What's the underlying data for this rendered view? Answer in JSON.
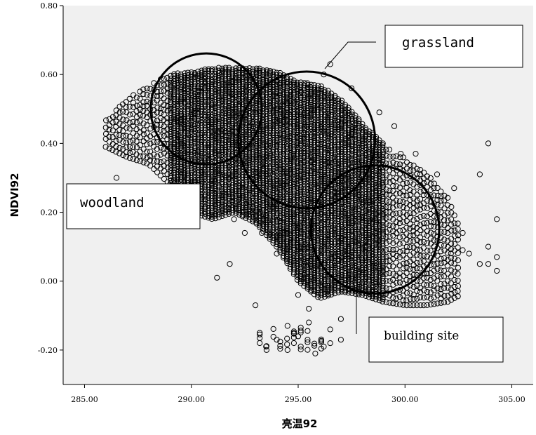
{
  "chart_data": {
    "type": "scatter",
    "xlabel": "亮温92",
    "ylabel": "NDVI92",
    "xlim": [
      284,
      306
    ],
    "ylim": [
      -0.3,
      0.8
    ],
    "xticks": [
      "285.00",
      "290.00",
      "295.00",
      "300.00",
      "305.00"
    ],
    "yticks": [
      "-0.20",
      "0.00",
      "0.20",
      "0.40",
      "0.60",
      "0.80"
    ],
    "xtick_values": [
      285,
      290,
      295,
      300,
      305
    ],
    "ytick_values": [
      -0.2,
      0.0,
      0.2,
      0.4,
      0.6,
      0.8
    ],
    "grid": false,
    "marker": "open-circle",
    "colors": {
      "plot_background": "#f0f0f0",
      "marker": "#000000"
    },
    "band_envelope": [
      {
        "x": 286.0,
        "ymin": 0.39,
        "ymax": 0.47
      },
      {
        "x": 287.0,
        "ymin": 0.36,
        "ymax": 0.53
      },
      {
        "x": 288.0,
        "ymin": 0.34,
        "ymax": 0.57
      },
      {
        "x": 289.0,
        "ymin": 0.28,
        "ymax": 0.6
      },
      {
        "x": 290.0,
        "ymin": 0.2,
        "ymax": 0.61
      },
      {
        "x": 291.0,
        "ymin": 0.18,
        "ymax": 0.62
      },
      {
        "x": 292.0,
        "ymin": 0.2,
        "ymax": 0.62
      },
      {
        "x": 293.0,
        "ymin": 0.17,
        "ymax": 0.62
      },
      {
        "x": 294.0,
        "ymin": 0.1,
        "ymax": 0.61
      },
      {
        "x": 295.0,
        "ymin": 0.0,
        "ymax": 0.58
      },
      {
        "x": 296.0,
        "ymin": -0.05,
        "ymax": 0.57
      },
      {
        "x": 297.0,
        "ymin": -0.03,
        "ymax": 0.53
      },
      {
        "x": 298.0,
        "ymin": -0.04,
        "ymax": 0.46
      },
      {
        "x": 299.0,
        "ymin": -0.06,
        "ymax": 0.4
      },
      {
        "x": 300.0,
        "ymin": -0.07,
        "ymax": 0.36
      },
      {
        "x": 301.0,
        "ymin": -0.07,
        "ymax": 0.32
      },
      {
        "x": 302.0,
        "ymin": -0.06,
        "ymax": 0.25
      },
      {
        "x": 302.6,
        "ymin": -0.04,
        "ymax": 0.15
      }
    ],
    "scattered_points": [
      [
        286.5,
        0.3
      ],
      [
        289.0,
        0.28
      ],
      [
        290.2,
        0.23
      ],
      [
        291.2,
        0.01
      ],
      [
        291.8,
        0.05
      ],
      [
        292.0,
        0.18
      ],
      [
        292.5,
        0.14
      ],
      [
        293.0,
        -0.07
      ],
      [
        293.3,
        0.14
      ],
      [
        293.5,
        0.19
      ],
      [
        294.0,
        0.13
      ],
      [
        294.5,
        0.1
      ],
      [
        294.0,
        0.08
      ],
      [
        295.0,
        -0.04
      ],
      [
        295.5,
        -0.08
      ],
      [
        296.5,
        -0.14
      ],
      [
        296.5,
        -0.18
      ],
      [
        297.0,
        -0.11
      ],
      [
        303.5,
        0.31
      ],
      [
        303.9,
        0.4
      ],
      [
        304.3,
        0.18
      ],
      [
        303.5,
        0.05
      ],
      [
        303.9,
        0.1
      ],
      [
        304.3,
        0.07
      ],
      [
        304.3,
        0.03
      ],
      [
        303.0,
        0.08
      ],
      [
        302.7,
        0.14
      ],
      [
        302.7,
        0.09
      ],
      [
        303.9,
        0.05
      ],
      [
        302.3,
        0.27
      ],
      [
        301.5,
        0.31
      ],
      [
        300.5,
        0.37
      ],
      [
        299.8,
        0.37
      ],
      [
        299.5,
        0.45
      ],
      [
        298.8,
        0.49
      ],
      [
        297.5,
        0.56
      ],
      [
        296.5,
        0.63
      ],
      [
        296.2,
        0.6
      ],
      [
        294.5,
        -0.2
      ],
      [
        293.5,
        -0.19
      ],
      [
        294.0,
        -0.17
      ],
      [
        295.0,
        -0.16
      ],
      [
        295.8,
        -0.21
      ],
      [
        296.2,
        -0.19
      ],
      [
        293.2,
        -0.15
      ],
      [
        294.5,
        -0.13
      ],
      [
        295.5,
        -0.12
      ],
      [
        297.0,
        -0.17
      ]
    ],
    "low_cluster": {
      "xmin": 293.2,
      "xmax": 296.3,
      "ymin": -0.2,
      "ymax": -0.13
    },
    "highlight_circles": [
      {
        "label_key": "woodland",
        "cx": 290.7,
        "cy": 0.5,
        "r_data_x": 2.6
      },
      {
        "label_key": "grassland",
        "cx": 295.4,
        "cy": 0.41,
        "r_data_x": 3.2
      },
      {
        "label_key": "building_site",
        "cx": 298.6,
        "cy": 0.15,
        "r_data_x": 3.0
      }
    ],
    "annotations": {
      "woodland": {
        "text": "woodland",
        "font": "mono"
      },
      "grassland": {
        "text": "grassland",
        "font": "mono"
      },
      "building_site": {
        "text": "building site",
        "font": "serif"
      }
    }
  }
}
